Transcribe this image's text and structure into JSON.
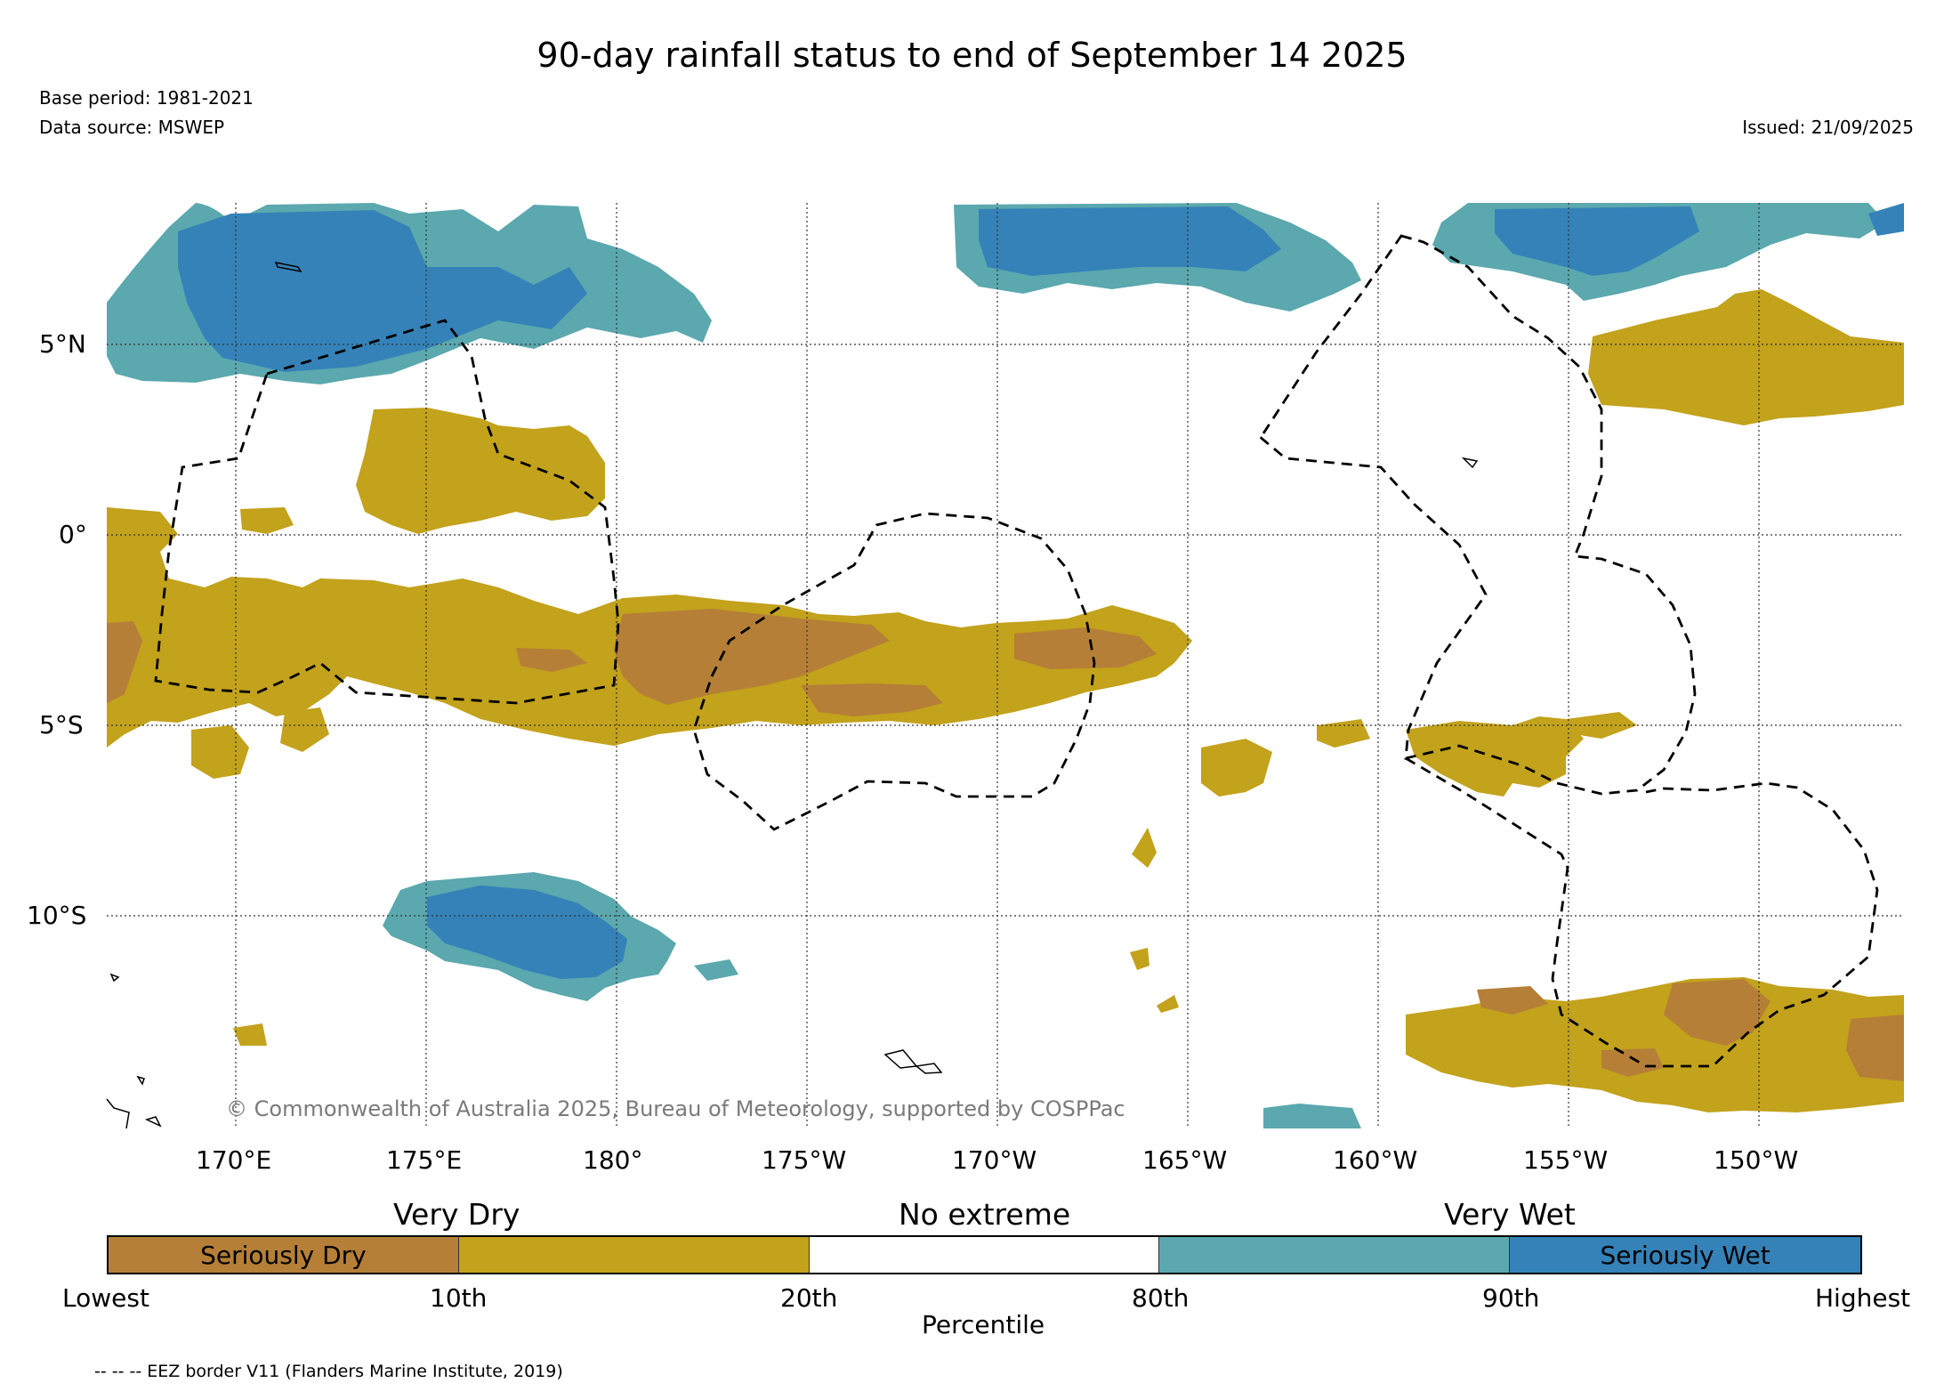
{
  "header": {
    "title": "90-day rainfall status to end of September 14 2025",
    "base_period": "Base period: 1981-2021",
    "data_source": "Data source: MSWEP",
    "issued": "Issued: 21/09/2025"
  },
  "map": {
    "lat_labels": [
      "5°N",
      "0°",
      "5°S",
      "10°S"
    ],
    "lon_labels": [
      "170°E",
      "175°E",
      "180°",
      "175°W",
      "170°W",
      "165°W",
      "160°W",
      "155°W",
      "150°W"
    ],
    "copyright": "© Commonwealth of Australia 2025, Bureau of Meteorology, supported by COSPPac",
    "colors": {
      "seriously_dry": "#b57f37",
      "dry": "#c3a21c",
      "no_extreme": "#ffffff",
      "wet": "#5ba8ae",
      "seriously_wet": "#3482b8",
      "eez_border": "#000000"
    }
  },
  "legend": {
    "headings": {
      "very_dry": "Very Dry",
      "no_extreme": "No extreme",
      "very_wet": "Very Wet"
    },
    "segments": [
      {
        "label": "Seriously Dry",
        "color": "#b57f37"
      },
      {
        "label": "",
        "color": "#c3a21c"
      },
      {
        "label": "",
        "color": "#ffffff"
      },
      {
        "label": "",
        "color": "#5ba8ae"
      },
      {
        "label": "Seriously Wet",
        "color": "#3482b8"
      }
    ],
    "tick_labels": [
      "Lowest",
      "10th",
      "20th",
      "80th",
      "90th",
      "Highest"
    ],
    "axis_title": "Percentile"
  },
  "footer": {
    "eez_note": "-- -- -- EEZ border V11 (Flanders Marine Institute, 2019)"
  }
}
